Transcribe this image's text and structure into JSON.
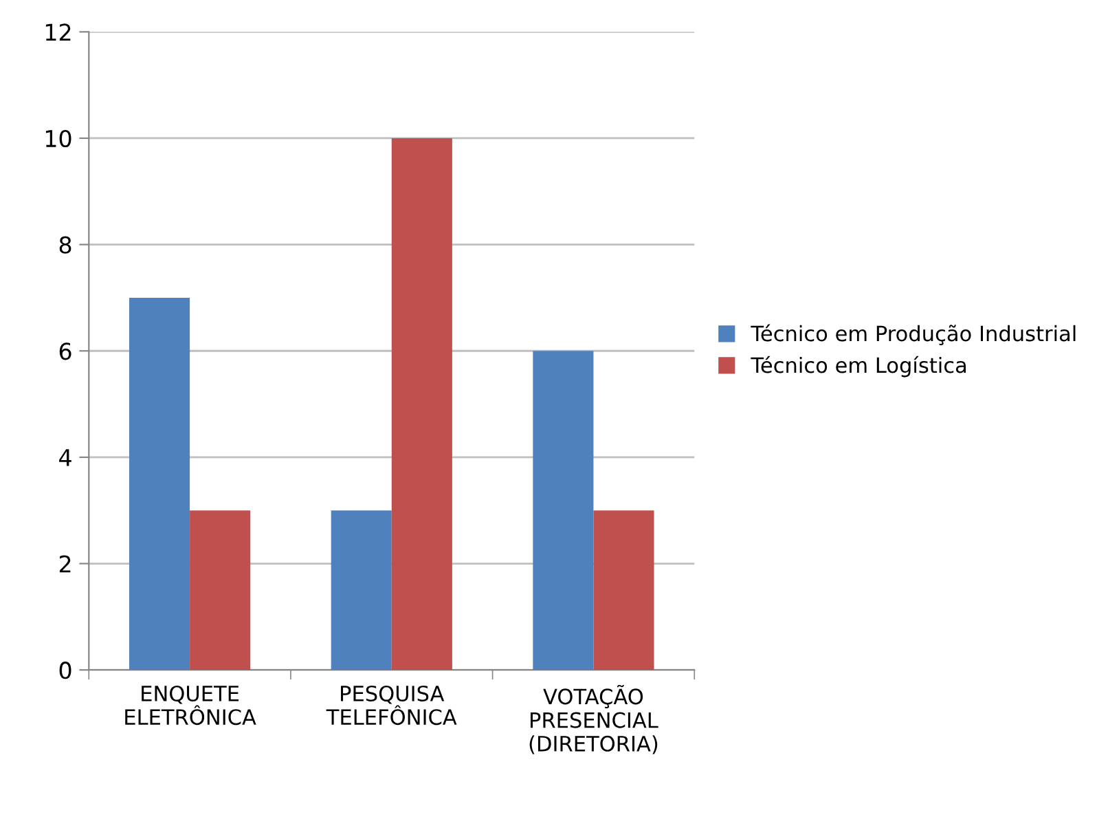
{
  "chart_data": {
    "type": "bar",
    "categories": [
      "ENQUETE\nELETRÔNICA",
      "PESQUISA\nTELEFÔNICA",
      "VOTAÇÃO\nPRESENCIAL\n(DIRETORIA)"
    ],
    "series": [
      {
        "name": "Técnico em Produção Industrial",
        "color": "#4f81bd",
        "values": [
          7,
          3,
          6
        ]
      },
      {
        "name": "Técnico em Logística",
        "color": "#c0504d",
        "values": [
          3,
          10,
          3
        ]
      }
    ],
    "ylim": [
      0,
      12
    ],
    "yticks": [
      0,
      2,
      4,
      6,
      8,
      10,
      12
    ],
    "grid": "y",
    "legend": "right"
  }
}
